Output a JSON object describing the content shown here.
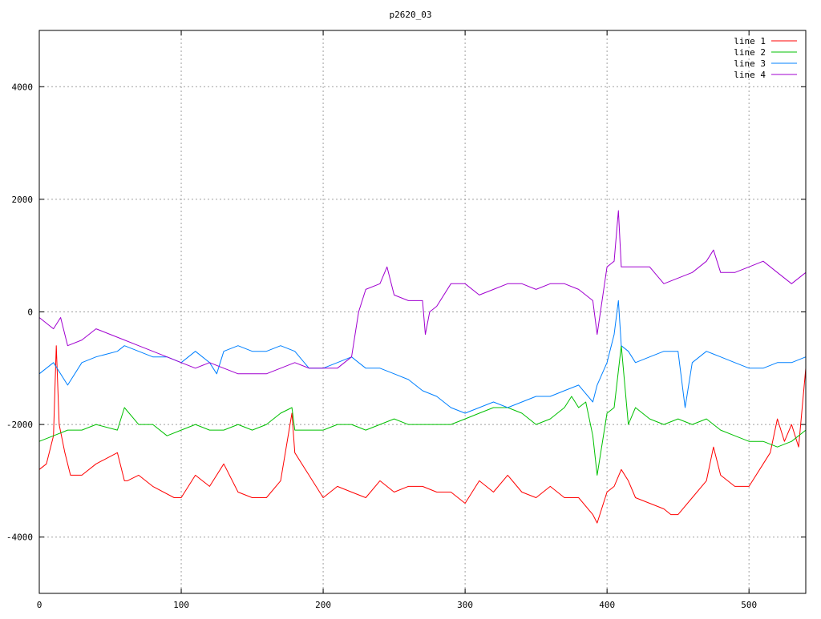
{
  "chart_data": {
    "type": "line",
    "title": "p2620_03",
    "xlabel": "",
    "ylabel": "",
    "xlim": [
      0,
      540
    ],
    "ylim": [
      -5000,
      5000
    ],
    "x_ticks": [
      0,
      100,
      200,
      300,
      400,
      500
    ],
    "y_ticks": [
      -4000,
      -2000,
      0,
      2000,
      4000
    ],
    "grid": true,
    "legend_position": "top-right",
    "series": [
      {
        "name": "line 1",
        "color": "#ff0000",
        "x": [
          0,
          5,
          10,
          12,
          14,
          18,
          22,
          30,
          40,
          55,
          60,
          62,
          70,
          80,
          95,
          100,
          110,
          120,
          130,
          140,
          150,
          160,
          170,
          178,
          180,
          190,
          200,
          210,
          220,
          230,
          240,
          250,
          260,
          270,
          280,
          290,
          300,
          310,
          320,
          330,
          340,
          350,
          360,
          370,
          380,
          390,
          393,
          400,
          405,
          410,
          415,
          420,
          430,
          440,
          445,
          450,
          460,
          470,
          475,
          480,
          490,
          500,
          510,
          515,
          520,
          525,
          530,
          535,
          540
        ],
        "values": [
          -2800,
          -2700,
          -2200,
          -600,
          -2000,
          -2500,
          -2900,
          -2900,
          -2700,
          -2500,
          -3000,
          -3000,
          -2900,
          -3100,
          -3300,
          -3300,
          -2900,
          -3100,
          -2700,
          -3200,
          -3300,
          -3300,
          -3000,
          -1800,
          -2500,
          -2900,
          -3300,
          -3100,
          -3200,
          -3300,
          -3000,
          -3200,
          -3100,
          -3100,
          -3200,
          -3200,
          -3400,
          -3000,
          -3200,
          -2900,
          -3200,
          -3300,
          -3100,
          -3300,
          -3300,
          -3600,
          -3750,
          -3200,
          -3100,
          -2800,
          -3000,
          -3300,
          -3400,
          -3500,
          -3600,
          -3600,
          -3300,
          -3000,
          -2400,
          -2900,
          -3100,
          -3100,
          -2700,
          -2500,
          -1900,
          -2300,
          -2000,
          -2400,
          -1000
        ]
      },
      {
        "name": "line 2",
        "color": "#00c000",
        "x": [
          0,
          10,
          20,
          30,
          40,
          55,
          60,
          70,
          80,
          90,
          100,
          110,
          120,
          130,
          140,
          150,
          160,
          170,
          178,
          180,
          190,
          200,
          210,
          220,
          230,
          240,
          250,
          260,
          270,
          280,
          290,
          300,
          310,
          320,
          330,
          340,
          350,
          360,
          370,
          375,
          380,
          385,
          390,
          393,
          400,
          405,
          410,
          415,
          420,
          430,
          440,
          450,
          460,
          470,
          480,
          490,
          500,
          510,
          520,
          530,
          540
        ],
        "values": [
          -2300,
          -2200,
          -2100,
          -2100,
          -2000,
          -2100,
          -1700,
          -2000,
          -2000,
          -2200,
          -2100,
          -2000,
          -2100,
          -2100,
          -2000,
          -2100,
          -2000,
          -1800,
          -1700,
          -2100,
          -2100,
          -2100,
          -2000,
          -2000,
          -2100,
          -2000,
          -1900,
          -2000,
          -2000,
          -2000,
          -2000,
          -1900,
          -1800,
          -1700,
          -1700,
          -1800,
          -2000,
          -1900,
          -1700,
          -1500,
          -1700,
          -1600,
          -2200,
          -2900,
          -1800,
          -1700,
          -600,
          -2000,
          -1700,
          -1900,
          -2000,
          -1900,
          -2000,
          -1900,
          -2100,
          -2200,
          -2300,
          -2300,
          -2400,
          -2300,
          -2100
        ]
      },
      {
        "name": "line 3",
        "color": "#0080ff",
        "x": [
          0,
          10,
          20,
          30,
          40,
          55,
          60,
          70,
          80,
          90,
          100,
          110,
          120,
          125,
          130,
          140,
          150,
          160,
          170,
          180,
          190,
          200,
          210,
          220,
          225,
          230,
          240,
          250,
          260,
          270,
          280,
          290,
          300,
          310,
          320,
          330,
          340,
          350,
          360,
          370,
          380,
          390,
          393,
          400,
          405,
          408,
          410,
          415,
          420,
          430,
          440,
          450,
          455,
          460,
          470,
          480,
          490,
          500,
          510,
          520,
          530,
          540
        ],
        "values": [
          -1100,
          -900,
          -1300,
          -900,
          -800,
          -700,
          -600,
          -700,
          -800,
          -800,
          -900,
          -700,
          -900,
          -1100,
          -700,
          -600,
          -700,
          -700,
          -600,
          -700,
          -1000,
          -1000,
          -900,
          -800,
          -900,
          -1000,
          -1000,
          -1100,
          -1200,
          -1400,
          -1500,
          -1700,
          -1800,
          -1700,
          -1600,
          -1700,
          -1600,
          -1500,
          -1500,
          -1400,
          -1300,
          -1600,
          -1300,
          -900,
          -400,
          200,
          -600,
          -700,
          -900,
          -800,
          -700,
          -700,
          -1700,
          -900,
          -700,
          -800,
          -900,
          -1000,
          -1000,
          -900,
          -900,
          -800
        ]
      },
      {
        "name": "line 4",
        "color": "#a000d0",
        "x": [
          0,
          5,
          10,
          15,
          20,
          30,
          40,
          50,
          60,
          70,
          80,
          90,
          100,
          110,
          120,
          130,
          140,
          150,
          160,
          170,
          180,
          190,
          200,
          210,
          220,
          225,
          230,
          240,
          245,
          250,
          260,
          270,
          272,
          275,
          280,
          290,
          300,
          310,
          320,
          330,
          340,
          350,
          360,
          370,
          380,
          390,
          393,
          400,
          405,
          408,
          410,
          415,
          420,
          430,
          440,
          450,
          460,
          470,
          475,
          480,
          490,
          500,
          510,
          520,
          530,
          540
        ],
        "values": [
          -100,
          -200,
          -300,
          -100,
          -600,
          -500,
          -300,
          -400,
          -500,
          -600,
          -700,
          -800,
          -900,
          -1000,
          -900,
          -1000,
          -1100,
          -1100,
          -1100,
          -1000,
          -900,
          -1000,
          -1000,
          -1000,
          -800,
          0,
          400,
          500,
          800,
          300,
          200,
          200,
          -400,
          0,
          100,
          500,
          500,
          300,
          400,
          500,
          500,
          400,
          500,
          500,
          400,
          200,
          -400,
          800,
          900,
          1800,
          800,
          800,
          800,
          800,
          500,
          600,
          700,
          900,
          1100,
          700,
          700,
          800,
          900,
          700,
          500,
          700
        ]
      }
    ]
  }
}
